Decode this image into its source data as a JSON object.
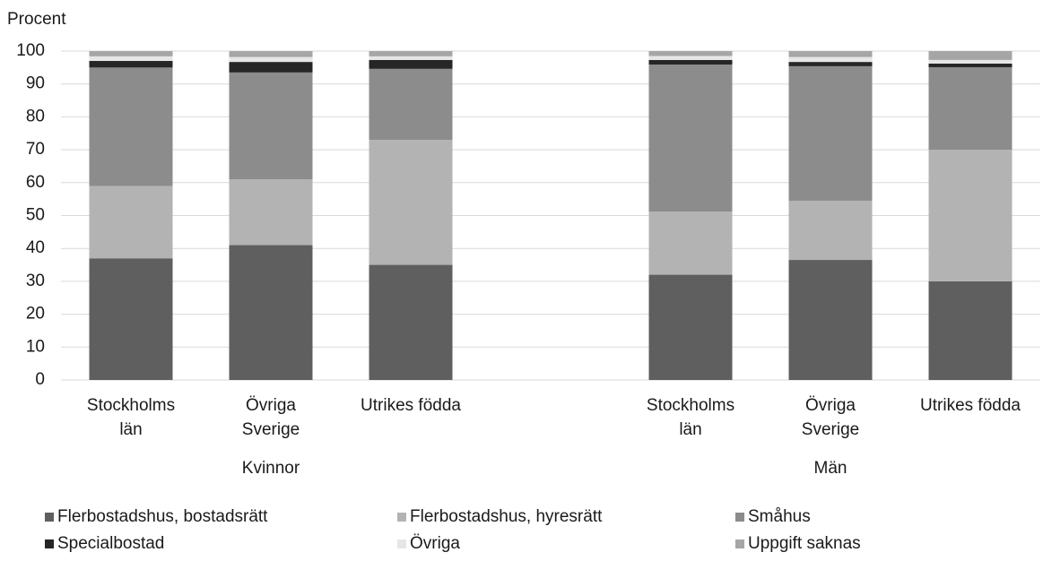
{
  "chart_data": {
    "type": "stacked_bar",
    "y_label": "Procent",
    "groups": [
      {
        "name": "Kvinnor",
        "categories": [
          [
            "Stockholms",
            "län"
          ],
          [
            "Övriga",
            "Sverige"
          ],
          [
            "Utrikes födda"
          ]
        ]
      },
      {
        "name": "Män",
        "categories": [
          [
            "Stockholms",
            "län"
          ],
          [
            "Övriga",
            "Sverige"
          ],
          [
            "Utrikes födda"
          ]
        ]
      }
    ],
    "series": [
      {
        "name": "Flerbostadshus, bostadsrätt",
        "color": "#5f5f5f",
        "values": [
          37,
          41,
          35,
          32,
          36.5,
          30
        ]
      },
      {
        "name": "Flerbostadshus, hyresrätt",
        "color": "#b3b3b3",
        "values": [
          22,
          20,
          38,
          19.2,
          18,
          40
        ]
      },
      {
        "name": "Småhus",
        "color": "#8c8c8c",
        "values": [
          36,
          32.5,
          21.6,
          44.7,
          40.9,
          25.1
        ]
      },
      {
        "name": "Specialbostad",
        "color": "#262626",
        "values": [
          2,
          3.2,
          2.7,
          1.4,
          1.3,
          1.1
        ]
      },
      {
        "name": "Övriga",
        "color": "#e6e6e6",
        "values": [
          1.4,
          1.5,
          1.1,
          1.2,
          1.5,
          1.1
        ]
      },
      {
        "name": "Uppgift saknas",
        "color": "#a6a6a6",
        "values": [
          1.6,
          1.8,
          1.6,
          1.5,
          1.8,
          2.7
        ]
      }
    ],
    "ylim": [
      0,
      100
    ],
    "yticks": [
      0,
      10,
      20,
      30,
      40,
      50,
      60,
      70,
      80,
      90,
      100
    ],
    "grid": true
  }
}
